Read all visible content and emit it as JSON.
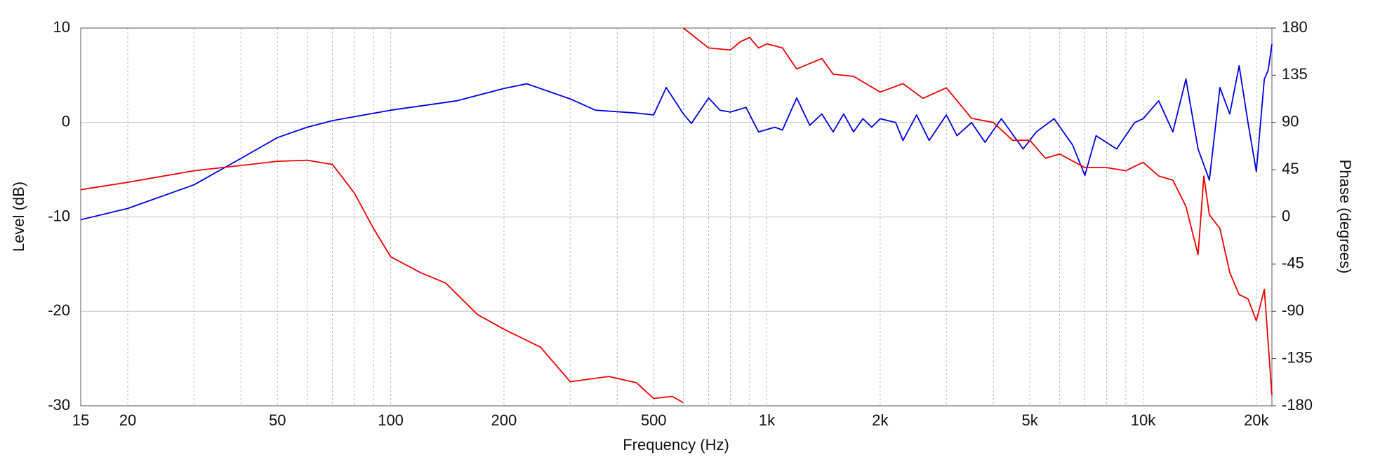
{
  "chart_data": {
    "type": "line",
    "xlabel": "Frequency (Hz)",
    "ylabel": "Level (dB)",
    "y2label": "Phase (degrees)",
    "xscale": "log",
    "grid": true,
    "xlim": [
      15,
      22000
    ],
    "ylim": [
      -30,
      10
    ],
    "y2lim": [
      -180,
      180
    ],
    "xticks": [
      15,
      20,
      50,
      100,
      200,
      500,
      {
        "value": 1000,
        "label": "1k"
      },
      {
        "value": 2000,
        "label": "2k"
      },
      {
        "value": 5000,
        "label": "5k"
      },
      {
        "value": 10000,
        "label": "10k"
      },
      {
        "value": 20000,
        "label": "20k"
      }
    ],
    "x_minor_ticks": [
      30,
      40,
      60,
      70,
      80,
      90,
      300,
      400,
      600,
      700,
      800,
      900,
      3000,
      4000,
      6000,
      7000,
      8000,
      9000
    ],
    "yticks": [
      -30,
      -20,
      -10,
      0,
      10
    ],
    "y2ticks": [
      -180,
      -135,
      -90,
      -45,
      0,
      45,
      90,
      135,
      180
    ],
    "series": [
      {
        "color": "#0000e0",
        "x": [
          15,
          20,
          30,
          40,
          50,
          60,
          70,
          100,
          150,
          200,
          230,
          300,
          350,
          450,
          500,
          540,
          600,
          630,
          700,
          750,
          800,
          880,
          950,
          1050,
          1100,
          1200,
          1300,
          1400,
          1500,
          1600,
          1700,
          1800,
          1900,
          2000,
          2200,
          2300,
          2500,
          2700,
          3000,
          3200,
          3500,
          3800,
          4200,
          4800,
          5200,
          5800,
          6500,
          7000,
          7500,
          8500,
          9500,
          10000,
          11000,
          12000,
          13000,
          14000,
          15000,
          16000,
          17000,
          18000,
          19000,
          20000,
          21000,
          21500,
          22000
        ],
        "values": [
          -10.3,
          -9.1,
          -6.6,
          -3.8,
          -1.6,
          -0.5,
          0.2,
          1.3,
          2.3,
          3.6,
          4.1,
          2.5,
          1.3,
          1.0,
          0.8,
          3.7,
          0.9,
          -0.1,
          2.6,
          1.3,
          1.1,
          1.6,
          -1.0,
          -0.5,
          -0.8,
          2.6,
          -0.3,
          0.9,
          -1.0,
          0.9,
          -1.0,
          0.4,
          -0.5,
          0.4,
          0.0,
          -1.9,
          0.8,
          -1.9,
          0.8,
          -1.4,
          0.0,
          -2.1,
          0.4,
          -2.8,
          -1.0,
          0.4,
          -2.4,
          -5.6,
          -1.4,
          -2.8,
          0.0,
          0.4,
          2.3,
          -1.0,
          4.6,
          -2.8,
          -6.1,
          3.7,
          0.9,
          6.0,
          0.0,
          -5.2,
          4.6,
          5.5,
          8.3
        ]
      },
      {
        "color": "#ee0000",
        "axis": "y2",
        "x": [
          15,
          20,
          30,
          40,
          50,
          60,
          70,
          80,
          90,
          100,
          120,
          140,
          170,
          200,
          250,
          300,
          380,
          450,
          500,
          560,
          600,
          null,
          600,
          700,
          800,
          850,
          900,
          950,
          1000,
          1100,
          1200,
          1400,
          1500,
          1700,
          2000,
          2300,
          2600,
          3000,
          3500,
          4000,
          4500,
          5000,
          5500,
          6000,
          7000,
          8000,
          9000,
          10000,
          11000,
          12000,
          13000,
          14000,
          14500,
          15000,
          16000,
          17000,
          18000,
          19000,
          20000,
          21000,
          22000
        ],
        "values": [
          26,
          33,
          44,
          49,
          53,
          54,
          50,
          23,
          -11,
          -38,
          -53,
          -63,
          -93,
          -107,
          -124,
          -157,
          -152,
          -158,
          -173,
          -171,
          -177,
          null,
          180,
          161,
          159,
          167,
          171,
          161,
          165,
          161,
          141,
          151,
          136,
          134,
          119,
          127,
          113,
          123,
          94,
          90,
          73,
          73,
          56,
          60,
          47,
          47,
          44,
          52,
          39,
          35,
          10,
          -36,
          39,
          2,
          -11,
          -53,
          -74,
          -78,
          -99,
          -69,
          -170
        ]
      }
    ]
  }
}
